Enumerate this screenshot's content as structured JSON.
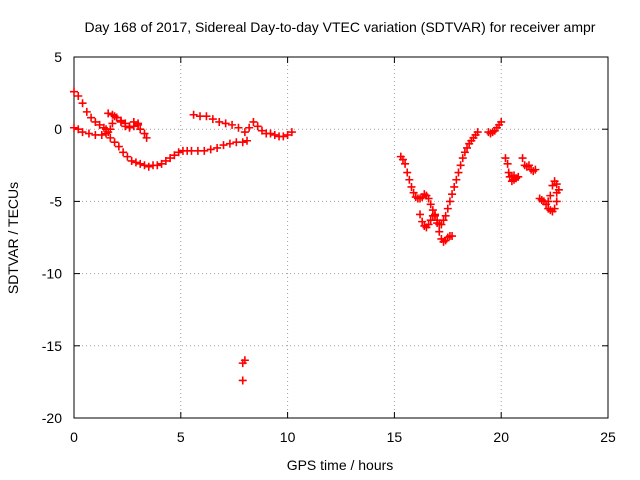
{
  "chart_data": {
    "type": "scatter",
    "title": "Day 168 of 2017, Sidereal Day-to-day VTEC variation (SDTVAR) for receiver ampr",
    "xlabel": "GPS time / hours",
    "ylabel": "SDTVAR / TECUs",
    "xlim": [
      0,
      25
    ],
    "ylim": [
      -20,
      5
    ],
    "xticks": [
      0,
      5,
      10,
      15,
      20,
      25
    ],
    "yticks": [
      5,
      0,
      -5,
      -10,
      -15,
      -20
    ],
    "grid": true,
    "marker": "+",
    "color": "#ff0000",
    "segments": [
      {
        "name": "seg-a",
        "points": [
          [
            0.0,
            2.6
          ],
          [
            0.2,
            2.3
          ],
          [
            0.4,
            1.8
          ],
          [
            0.6,
            1.2
          ],
          [
            0.8,
            0.8
          ],
          [
            1.0,
            0.5
          ],
          [
            1.2,
            0.3
          ],
          [
            1.4,
            0.1
          ],
          [
            1.5,
            0.0
          ],
          [
            1.6,
            -0.2
          ],
          [
            1.7,
            -0.6
          ],
          [
            1.9,
            -0.9
          ],
          [
            2.1,
            -1.2
          ],
          [
            2.3,
            -1.6
          ],
          [
            2.5,
            -1.9
          ],
          [
            2.7,
            -2.2
          ],
          [
            2.9,
            -2.3
          ],
          [
            3.1,
            -2.4
          ],
          [
            3.3,
            -2.5
          ],
          [
            3.5,
            -2.6
          ],
          [
            3.7,
            -2.5
          ],
          [
            3.9,
            -2.5
          ],
          [
            4.1,
            -2.4
          ],
          [
            4.3,
            -2.2
          ],
          [
            4.5,
            -2.0
          ],
          [
            4.7,
            -1.8
          ],
          [
            4.9,
            -1.6
          ],
          [
            5.1,
            -1.5
          ],
          [
            5.3,
            -1.5
          ],
          [
            5.5,
            -1.5
          ],
          [
            5.8,
            -1.5
          ],
          [
            6.1,
            -1.5
          ],
          [
            6.4,
            -1.4
          ],
          [
            6.7,
            -1.3
          ],
          [
            7.0,
            -1.1
          ],
          [
            7.3,
            -1.0
          ],
          [
            7.6,
            -0.9
          ],
          [
            7.9,
            -0.9
          ],
          [
            8.1,
            -0.8
          ]
        ]
      },
      {
        "name": "seg-b",
        "points": [
          [
            0.0,
            0.1
          ],
          [
            0.2,
            0.0
          ],
          [
            0.4,
            -0.2
          ],
          [
            0.7,
            -0.3
          ],
          [
            1.0,
            -0.4
          ],
          [
            1.3,
            -0.4
          ],
          [
            1.5,
            -0.3
          ],
          [
            1.7,
            0.0
          ],
          [
            1.8,
            0.4
          ],
          [
            1.9,
            0.9
          ],
          [
            2.0,
            0.8
          ],
          [
            2.2,
            0.5
          ],
          [
            2.4,
            0.2
          ],
          [
            2.6,
            0.1
          ],
          [
            2.8,
            0.2
          ],
          [
            3.0,
            0.3
          ],
          [
            3.1,
            0.0
          ],
          [
            3.3,
            -0.3
          ],
          [
            3.4,
            -0.6
          ]
        ]
      },
      {
        "name": "seg-c",
        "points": [
          [
            1.6,
            1.1
          ],
          [
            1.8,
            1.0
          ],
          [
            2.0,
            0.8
          ],
          [
            2.2,
            0.6
          ],
          [
            2.4,
            0.4
          ],
          [
            2.6,
            0.2
          ],
          [
            2.8,
            0.5
          ],
          [
            3.0,
            0.4
          ]
        ]
      },
      {
        "name": "seg-d",
        "points": [
          [
            5.6,
            1.0
          ],
          [
            5.9,
            0.9
          ],
          [
            6.2,
            0.9
          ],
          [
            6.5,
            0.7
          ],
          [
            6.8,
            0.5
          ],
          [
            7.1,
            0.4
          ],
          [
            7.4,
            0.3
          ],
          [
            7.7,
            0.1
          ],
          [
            8.0,
            -0.2
          ],
          [
            8.2,
            0.1
          ],
          [
            8.4,
            0.5
          ],
          [
            8.6,
            0.2
          ],
          [
            8.8,
            -0.1
          ],
          [
            9.0,
            -0.3
          ],
          [
            9.2,
            -0.3
          ],
          [
            9.4,
            -0.4
          ],
          [
            9.6,
            -0.5
          ],
          [
            9.8,
            -0.5
          ],
          [
            10.0,
            -0.4
          ],
          [
            10.2,
            -0.2
          ]
        ]
      },
      {
        "name": "seg-e",
        "points": [
          [
            7.9,
            -16.2
          ],
          [
            8.0,
            -16.0
          ],
          [
            7.9,
            -17.4
          ]
        ]
      },
      {
        "name": "seg-f",
        "points": [
          [
            15.3,
            -1.9
          ],
          [
            15.4,
            -2.1
          ],
          [
            15.5,
            -2.4
          ],
          [
            15.6,
            -3.0
          ],
          [
            15.7,
            -3.5
          ],
          [
            15.8,
            -4.0
          ],
          [
            15.9,
            -4.4
          ],
          [
            16.0,
            -4.7
          ],
          [
            16.1,
            -4.8
          ],
          [
            16.2,
            -4.8
          ],
          [
            16.3,
            -4.7
          ],
          [
            16.4,
            -4.5
          ],
          [
            16.5,
            -4.6
          ],
          [
            16.6,
            -4.8
          ],
          [
            16.7,
            -5.2
          ],
          [
            16.8,
            -5.6
          ],
          [
            16.9,
            -6.0
          ],
          [
            17.0,
            -6.3
          ],
          [
            17.1,
            -6.6
          ],
          [
            17.2,
            -6.6
          ],
          [
            17.3,
            -6.3
          ],
          [
            17.4,
            -6.0
          ],
          [
            17.5,
            -5.5
          ],
          [
            17.6,
            -5.0
          ],
          [
            17.7,
            -4.5
          ],
          [
            17.8,
            -4.0
          ],
          [
            17.9,
            -3.5
          ],
          [
            18.0,
            -3.0
          ],
          [
            18.1,
            -2.5
          ],
          [
            18.2,
            -2.0
          ],
          [
            18.3,
            -1.6
          ],
          [
            18.4,
            -1.3
          ],
          [
            18.5,
            -1.0
          ],
          [
            18.6,
            -0.8
          ],
          [
            18.7,
            -0.6
          ],
          [
            18.8,
            -0.4
          ],
          [
            18.9,
            -0.2
          ]
        ]
      },
      {
        "name": "seg-g",
        "points": [
          [
            16.2,
            -5.9
          ],
          [
            16.3,
            -6.4
          ],
          [
            16.4,
            -6.7
          ],
          [
            16.5,
            -6.8
          ],
          [
            16.6,
            -6.6
          ],
          [
            16.7,
            -6.3
          ],
          [
            16.8,
            -6.0
          ],
          [
            16.9,
            -5.9
          ],
          [
            17.0,
            -6.5
          ],
          [
            17.1,
            -7.1
          ],
          [
            17.2,
            -7.6
          ],
          [
            17.3,
            -7.8
          ],
          [
            17.4,
            -7.7
          ],
          [
            17.5,
            -7.5
          ],
          [
            17.6,
            -7.4
          ],
          [
            17.7,
            -7.4
          ]
        ]
      },
      {
        "name": "seg-h",
        "points": [
          [
            19.4,
            -0.2
          ],
          [
            19.5,
            -0.3
          ],
          [
            19.6,
            -0.2
          ],
          [
            19.7,
            -0.1
          ],
          [
            19.8,
            0.1
          ],
          [
            19.9,
            0.3
          ],
          [
            20.0,
            0.5
          ]
        ]
      },
      {
        "name": "seg-i",
        "points": [
          [
            20.2,
            -2.0
          ],
          [
            20.3,
            -2.4
          ],
          [
            20.35,
            -3.0
          ],
          [
            20.4,
            -3.3
          ],
          [
            20.5,
            -3.6
          ],
          [
            20.6,
            -3.5
          ],
          [
            20.7,
            -3.4
          ],
          [
            20.8,
            -3.3
          ],
          [
            20.5,
            -3.3
          ],
          [
            20.6,
            -3.2
          ]
        ]
      },
      {
        "name": "seg-j",
        "points": [
          [
            21.0,
            -2.0
          ],
          [
            21.1,
            -2.5
          ],
          [
            21.2,
            -2.6
          ],
          [
            21.3,
            -2.5
          ],
          [
            21.4,
            -2.8
          ],
          [
            21.5,
            -2.9
          ],
          [
            21.6,
            -2.8
          ]
        ]
      },
      {
        "name": "seg-k",
        "points": [
          [
            21.8,
            -4.8
          ],
          [
            21.9,
            -4.9
          ],
          [
            22.0,
            -5.0
          ],
          [
            22.1,
            -5.2
          ],
          [
            22.2,
            -5.5
          ],
          [
            22.3,
            -5.6
          ],
          [
            22.4,
            -5.7
          ],
          [
            22.5,
            -5.5
          ],
          [
            22.6,
            -5.0
          ],
          [
            22.6,
            -4.4
          ],
          [
            22.7,
            -4.2
          ],
          [
            22.6,
            -3.8
          ],
          [
            22.5,
            -3.6
          ],
          [
            22.4,
            -3.9
          ],
          [
            22.3,
            -4.6
          ],
          [
            22.2,
            -5.0
          ]
        ]
      }
    ]
  }
}
